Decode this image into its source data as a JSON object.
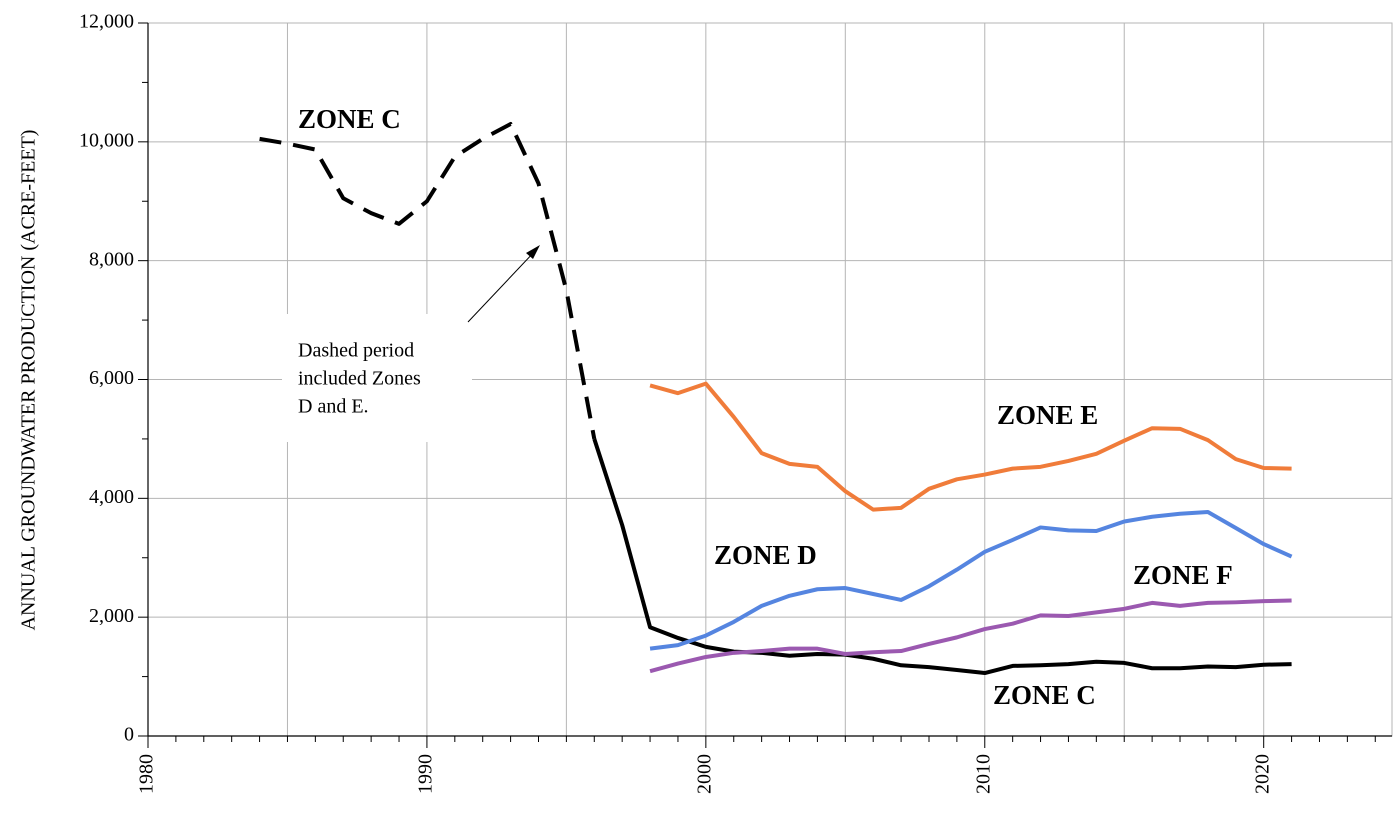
{
  "chart_data": {
    "type": "line",
    "y_label": "ANNUAL GROUNDWATER PRODUCTION (ACRE-FEET)",
    "xlim": [
      1980,
      2024.6
    ],
    "ylim": [
      0,
      12000
    ],
    "xticks": [
      1980,
      1990,
      2000,
      2010,
      2020
    ],
    "xgrid_lines": [
      1985,
      1995,
      2005,
      2015
    ],
    "xticks_minor": [
      1981,
      1982,
      1983,
      1984,
      1985,
      1986,
      1987,
      1988,
      1989,
      1991,
      1992,
      1993,
      1994,
      1995,
      1996,
      1997,
      1998,
      1999,
      2001,
      2002,
      2003,
      2004,
      2005,
      2006,
      2007,
      2008,
      2009,
      2011,
      2012,
      2013,
      2014,
      2015,
      2016,
      2017,
      2018,
      2019,
      2021,
      2022,
      2023,
      2024
    ],
    "yticks": [
      0,
      {
        "value": 2000,
        "label": "2,000"
      },
      {
        "value": 4000,
        "label": "4,000"
      },
      {
        "value": 6000,
        "label": "6,000"
      },
      {
        "value": 8000,
        "label": "8,000"
      },
      {
        "value": 10000,
        "label": "10,000"
      },
      {
        "value": 12000,
        "label": "12,000"
      }
    ],
    "yticks_minor": [
      1000,
      3000,
      5000,
      7000,
      9000,
      11000
    ],
    "grid": true,
    "series": [
      {
        "color": "#000000",
        "dashed": true,
        "x": [
          1984,
          1985,
          1986,
          1987,
          1988,
          1989,
          1990,
          1991,
          1992,
          1993,
          1994,
          1995,
          1996
        ],
        "values": [
          10050,
          9970,
          9870,
          9050,
          8800,
          8620,
          9000,
          9750,
          10050,
          10300,
          9300,
          7500,
          5000
        ]
      },
      {
        "color": "#000000",
        "dashed": false,
        "x": [
          1996,
          1997,
          1998,
          1999,
          2000,
          2001,
          2002,
          2003,
          2004,
          2005,
          2006,
          2007,
          2008,
          2009,
          2010,
          2011,
          2012,
          2013,
          2014,
          2015,
          2016,
          2017,
          2018,
          2019,
          2020,
          2021
        ],
        "values": [
          5000,
          3550,
          1830,
          1650,
          1500,
          1420,
          1400,
          1350,
          1380,
          1370,
          1300,
          1190,
          1160,
          1110,
          1060,
          1180,
          1190,
          1210,
          1250,
          1230,
          1140,
          1140,
          1170,
          1160,
          1200,
          1210
        ]
      },
      {
        "color": "#f07c3a",
        "dashed": false,
        "x": [
          1998,
          1999,
          2000,
          2001,
          2002,
          2003,
          2004,
          2005,
          2006,
          2007,
          2008,
          2009,
          2010,
          2011,
          2012,
          2013,
          2014,
          2015,
          2016,
          2017,
          2018,
          2019,
          2020,
          2021
        ],
        "values": [
          5900,
          5770,
          5930,
          5370,
          4760,
          4580,
          4530,
          4120,
          3810,
          3840,
          4160,
          4320,
          4400,
          4500,
          4530,
          4630,
          4750,
          4970,
          5180,
          5170,
          4980,
          4660,
          4510,
          4500
        ]
      },
      {
        "color": "#5585e0",
        "dashed": false,
        "x": [
          1998,
          1999,
          2000,
          2001,
          2002,
          2003,
          2004,
          2005,
          2006,
          2007,
          2008,
          2009,
          2010,
          2011,
          2012,
          2013,
          2014,
          2015,
          2016,
          2017,
          2018,
          2019,
          2020,
          2021
        ],
        "values": [
          1470,
          1530,
          1690,
          1920,
          2190,
          2360,
          2470,
          2490,
          2390,
          2290,
          2520,
          2800,
          3100,
          3300,
          3510,
          3460,
          3450,
          3610,
          3690,
          3740,
          3770,
          3500,
          3230,
          3020
        ]
      },
      {
        "color": "#9b59b0",
        "dashed": false,
        "x": [
          1998,
          1999,
          2000,
          2001,
          2002,
          2003,
          2004,
          2005,
          2006,
          2007,
          2008,
          2009,
          2010,
          2011,
          2012,
          2013,
          2014,
          2015,
          2016,
          2017,
          2018,
          2019,
          2020,
          2021
        ],
        "values": [
          1090,
          1220,
          1330,
          1400,
          1430,
          1470,
          1470,
          1380,
          1410,
          1430,
          1550,
          1660,
          1800,
          1890,
          2030,
          2020,
          2080,
          2140,
          2240,
          2190,
          2240,
          2250,
          2270,
          2280
        ]
      }
    ],
    "annotations": [
      {
        "text": "ZONE C",
        "color": "#000000"
      },
      {
        "text": "ZONE C",
        "color": "#000000"
      },
      {
        "text": "ZONE E",
        "color": "#f07c3a"
      },
      {
        "text": "ZONE D",
        "color": "#5585e0"
      },
      {
        "text": "ZONE F",
        "color": "#9b59b0"
      },
      {
        "lines": [
          "Dashed period",
          "included Zones",
          "D and E."
        ],
        "color": "#000000"
      }
    ]
  }
}
